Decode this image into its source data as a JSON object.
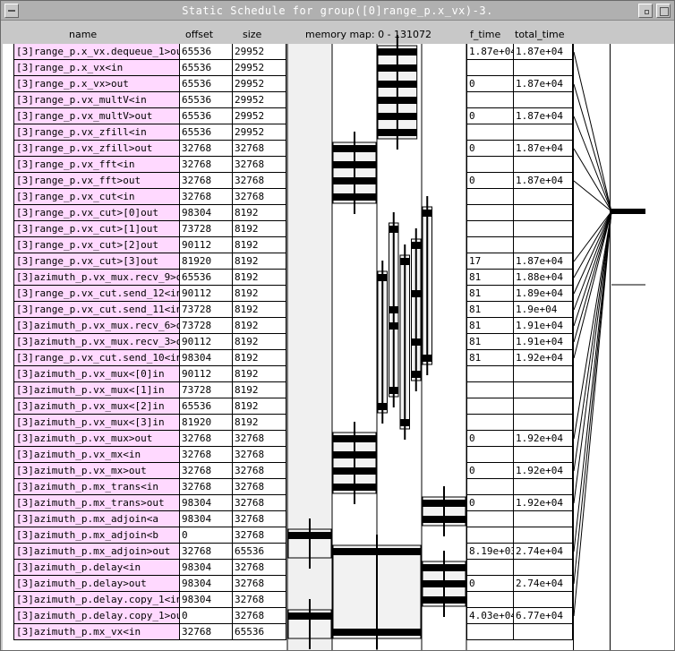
{
  "window": {
    "title": "Static Schedule for group([0]range_p.x_vx)-3."
  },
  "columns": {
    "name": "name",
    "offset": "offset",
    "size": "size",
    "memory_map": "memory map: 0 - 131072",
    "f_time": "f_time",
    "total_time": "total_time"
  },
  "rows": [
    {
      "name": "[3]range_p.x_vx.dequeue_1>out",
      "offset": "65536",
      "size": "29952",
      "f_time": "1.87e+04",
      "total_time": "1.87e+04"
    },
    {
      "name": "[3]range_p.x_vx<in",
      "offset": "65536",
      "size": "29952",
      "f_time": "",
      "total_time": ""
    },
    {
      "name": "[3]range_p.x_vx>out",
      "offset": "65536",
      "size": "29952",
      "f_time": "0",
      "total_time": "1.87e+04"
    },
    {
      "name": "[3]range_p.vx_multV<in",
      "offset": "65536",
      "size": "29952",
      "f_time": "",
      "total_time": ""
    },
    {
      "name": "[3]range_p.vx_multV>out",
      "offset": "65536",
      "size": "29952",
      "f_time": "0",
      "total_time": "1.87e+04"
    },
    {
      "name": "[3]range_p.vx_zfill<in",
      "offset": "65536",
      "size": "29952",
      "f_time": "",
      "total_time": ""
    },
    {
      "name": "[3]range_p.vx_zfill>out",
      "offset": "32768",
      "size": "32768",
      "f_time": "0",
      "total_time": "1.87e+04"
    },
    {
      "name": "[3]range_p.vx_fft<in",
      "offset": "32768",
      "size": "32768",
      "f_time": "",
      "total_time": ""
    },
    {
      "name": "[3]range_p.vx_fft>out",
      "offset": "32768",
      "size": "32768",
      "f_time": "0",
      "total_time": "1.87e+04"
    },
    {
      "name": "[3]range_p.vx_cut<in",
      "offset": "32768",
      "size": "32768",
      "f_time": "",
      "total_time": ""
    },
    {
      "name": "[3]range_p.vx_cut>[0]out",
      "offset": "98304",
      "size": "8192",
      "f_time": "",
      "total_time": ""
    },
    {
      "name": "[3]range_p.vx_cut>[1]out",
      "offset": "73728",
      "size": "8192",
      "f_time": "",
      "total_time": ""
    },
    {
      "name": "[3]range_p.vx_cut>[2]out",
      "offset": "90112",
      "size": "8192",
      "f_time": "",
      "total_time": ""
    },
    {
      "name": "[3]range_p.vx_cut>[3]out",
      "offset": "81920",
      "size": "8192",
      "f_time": "17",
      "total_time": "1.87e+04"
    },
    {
      "name": "[3]azimuth_p.vx_mux.recv_9>out",
      "offset": "65536",
      "size": "8192",
      "f_time": "81",
      "total_time": "1.88e+04"
    },
    {
      "name": "[3]range_p.vx_cut.send_12<in",
      "offset": "90112",
      "size": "8192",
      "f_time": "81",
      "total_time": "1.89e+04"
    },
    {
      "name": "[3]range_p.vx_cut.send_11<in",
      "offset": "73728",
      "size": "8192",
      "f_time": "81",
      "total_time": "1.9e+04"
    },
    {
      "name": "[3]azimuth_p.vx_mux.recv_6>out",
      "offset": "73728",
      "size": "8192",
      "f_time": "81",
      "total_time": "1.91e+04"
    },
    {
      "name": "[3]azimuth_p.vx_mux.recv_3>out",
      "offset": "90112",
      "size": "8192",
      "f_time": "81",
      "total_time": "1.91e+04"
    },
    {
      "name": "[3]range_p.vx_cut.send_10<in",
      "offset": "98304",
      "size": "8192",
      "f_time": "81",
      "total_time": "1.92e+04"
    },
    {
      "name": "[3]azimuth_p.vx_mux<[0]in",
      "offset": "90112",
      "size": "8192",
      "f_time": "",
      "total_time": ""
    },
    {
      "name": "[3]azimuth_p.vx_mux<[1]in",
      "offset": "73728",
      "size": "8192",
      "f_time": "",
      "total_time": ""
    },
    {
      "name": "[3]azimuth_p.vx_mux<[2]in",
      "offset": "65536",
      "size": "8192",
      "f_time": "",
      "total_time": ""
    },
    {
      "name": "[3]azimuth_p.vx_mux<[3]in",
      "offset": "81920",
      "size": "8192",
      "f_time": "",
      "total_time": ""
    },
    {
      "name": "[3]azimuth_p.vx_mux>out",
      "offset": "32768",
      "size": "32768",
      "f_time": "0",
      "total_time": "1.92e+04"
    },
    {
      "name": "[3]azimuth_p.vx_mx<in",
      "offset": "32768",
      "size": "32768",
      "f_time": "",
      "total_time": ""
    },
    {
      "name": "[3]azimuth_p.vx_mx>out",
      "offset": "32768",
      "size": "32768",
      "f_time": "0",
      "total_time": "1.92e+04"
    },
    {
      "name": "[3]azimuth_p.mx_trans<in",
      "offset": "32768",
      "size": "32768",
      "f_time": "",
      "total_time": ""
    },
    {
      "name": "[3]azimuth_p.mx_trans>out",
      "offset": "98304",
      "size": "32768",
      "f_time": "0",
      "total_time": "1.92e+04"
    },
    {
      "name": "[3]azimuth_p.mx_adjoin<a",
      "offset": "98304",
      "size": "32768",
      "f_time": "",
      "total_time": ""
    },
    {
      "name": "[3]azimuth_p.mx_adjoin<b",
      "offset": "0",
      "size": "32768",
      "f_time": "",
      "total_time": ""
    },
    {
      "name": "[3]azimuth_p.mx_adjoin>out",
      "offset": "32768",
      "size": "65536",
      "f_time": "8.19e+03",
      "total_time": "2.74e+04"
    },
    {
      "name": "[3]azimuth_p.delay<in",
      "offset": "98304",
      "size": "32768",
      "f_time": "",
      "total_time": ""
    },
    {
      "name": "[3]azimuth_p.delay>out",
      "offset": "98304",
      "size": "32768",
      "f_time": "0",
      "total_time": "2.74e+04"
    },
    {
      "name": "[3]azimuth_p.delay.copy_1<in",
      "offset": "98304",
      "size": "32768",
      "f_time": "",
      "total_time": ""
    },
    {
      "name": "[3]azimuth_p.delay.copy_1>out",
      "offset": "0",
      "size": "32768",
      "f_time": "4.03e+04",
      "total_time": "6.77e+04"
    },
    {
      "name": "[3]azimuth_p.mx_vx<in",
      "offset": "32768",
      "size": "65536",
      "f_time": "",
      "total_time": ""
    }
  ],
  "memory_map_max": 131072
}
